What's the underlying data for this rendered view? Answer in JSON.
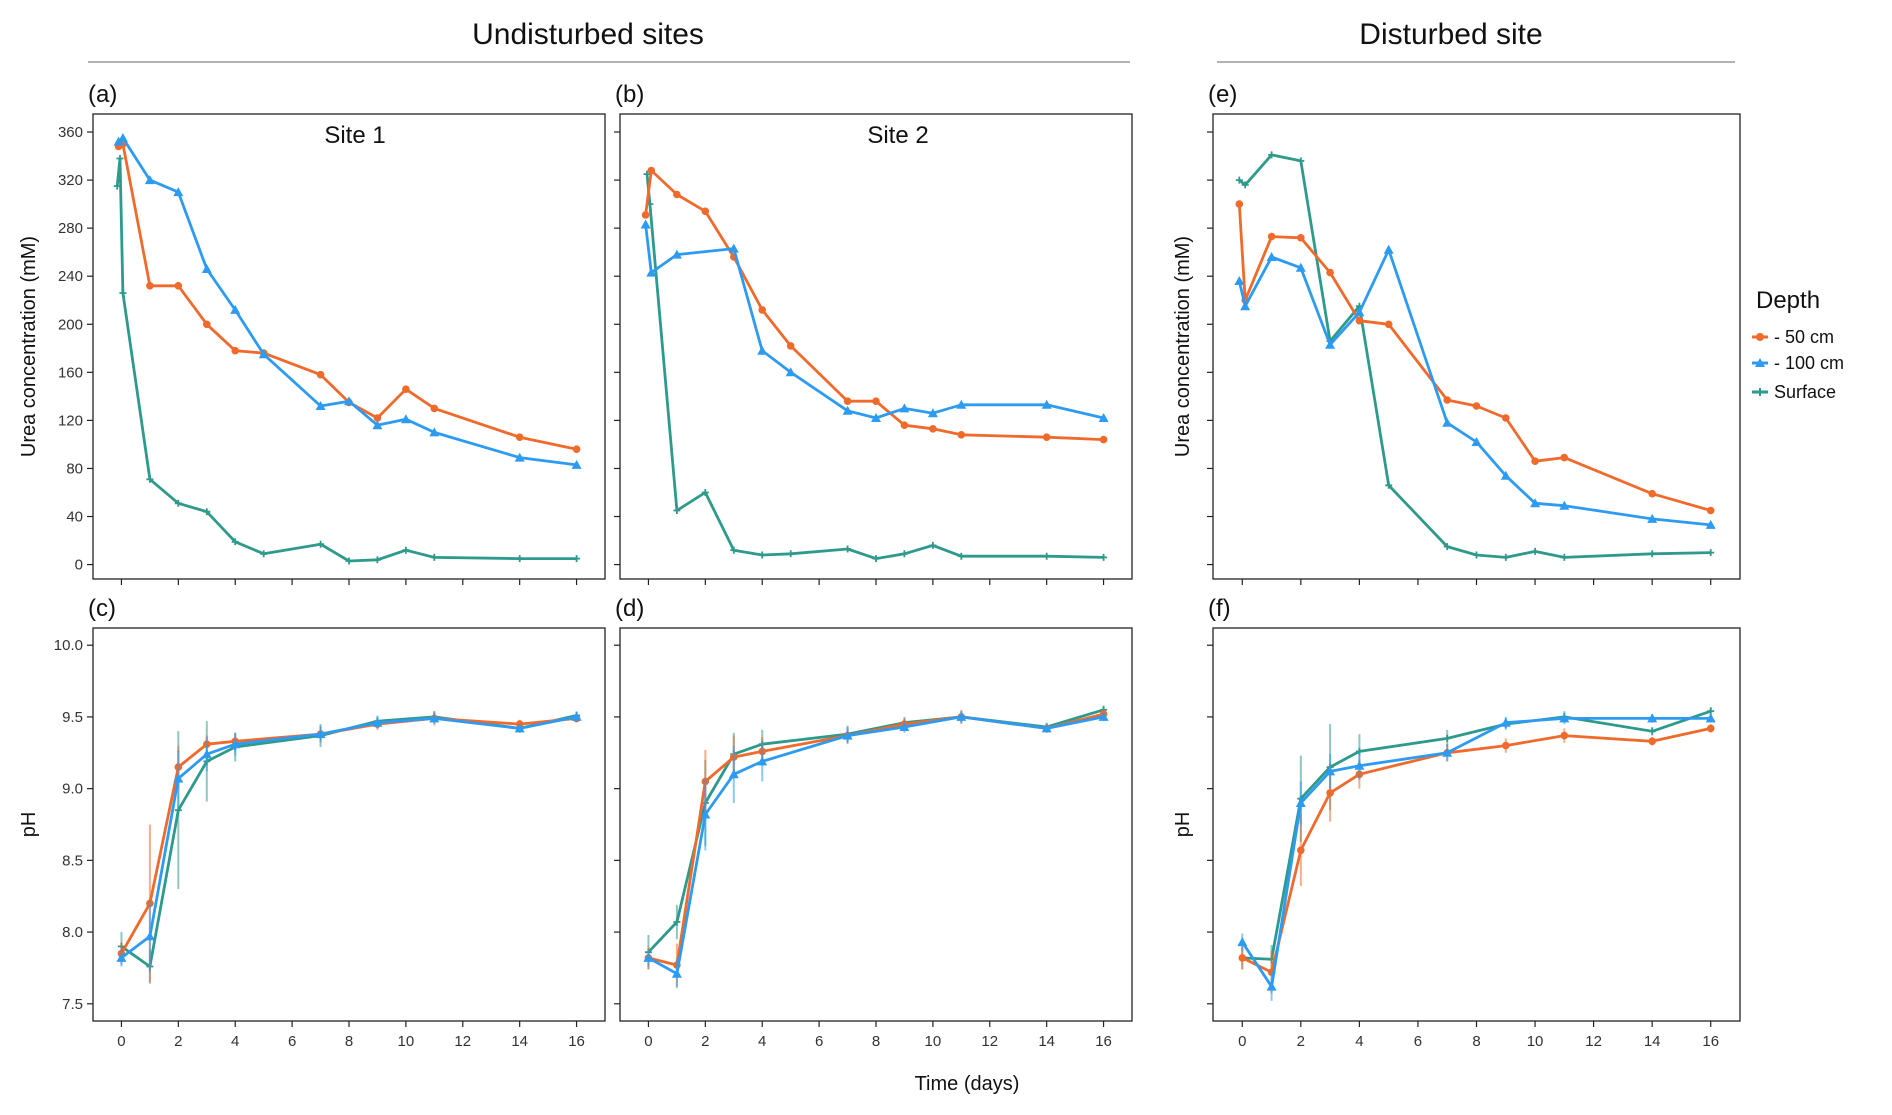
{
  "headers": {
    "undisturbed": "Undisturbed  sites",
    "disturbed": "Disturbed site"
  },
  "x_axis_label": "Time (days)",
  "colors": {
    "m50": "#F06A2C",
    "m100": "#2E9BF2",
    "surface": "#2E9A8C"
  },
  "legend": {
    "title": "Depth",
    "items": [
      {
        "key": "m50",
        "label": "- 50 cm",
        "marker": "circle"
      },
      {
        "key": "m100",
        "label": "- 100 cm",
        "marker": "triangle"
      },
      {
        "key": "surface",
        "label": "Surface",
        "marker": "cross"
      }
    ]
  },
  "chart_data": [
    {
      "id": "a",
      "panel_label": "(a)",
      "title": "Site 1",
      "type": "line",
      "ylabel": "Urea concentration (mM)",
      "xlim": [
        -1,
        17
      ],
      "ylim": [
        -12,
        375
      ],
      "yticks": [
        0,
        40,
        80,
        120,
        160,
        200,
        240,
        280,
        320,
        360
      ],
      "show_ytick_labels": true,
      "xticks": [
        0,
        2,
        4,
        6,
        8,
        10,
        12,
        14,
        16
      ],
      "show_xtick_labels": false,
      "series": [
        {
          "key": "m50",
          "name": "- 50 cm",
          "x": [
            -0.1,
            0.05,
            1,
            2,
            3,
            4,
            5,
            7,
            8,
            9,
            10,
            11,
            14,
            16
          ],
          "y": [
            348,
            350,
            232,
            232,
            200,
            178,
            176,
            158,
            135,
            122,
            146,
            130,
            106,
            96
          ]
        },
        {
          "key": "m100",
          "name": "- 100 cm",
          "x": [
            -0.1,
            0.05,
            1,
            2,
            3,
            4,
            5,
            7,
            8,
            9,
            10,
            11,
            14,
            16
          ],
          "y": [
            352,
            355,
            320,
            310,
            246,
            212,
            175,
            132,
            136,
            116,
            121,
            110,
            89,
            83
          ]
        },
        {
          "key": "surface",
          "name": "Surface",
          "x": [
            -0.15,
            -0.05,
            0.05,
            1,
            2,
            3,
            4,
            5,
            7,
            8,
            9,
            10,
            11,
            14,
            16
          ],
          "y": [
            315,
            338,
            226,
            71,
            51,
            44,
            19,
            9,
            17,
            3,
            4,
            12,
            6,
            5,
            5
          ]
        }
      ]
    },
    {
      "id": "b",
      "panel_label": "(b)",
      "title": "Site 2",
      "type": "line",
      "ylabel": "",
      "xlim": [
        -1,
        17
      ],
      "ylim": [
        -12,
        375
      ],
      "yticks": [
        0,
        40,
        80,
        120,
        160,
        200,
        240,
        280,
        320,
        360
      ],
      "show_ytick_labels": false,
      "xticks": [
        0,
        2,
        4,
        6,
        8,
        10,
        12,
        14,
        16
      ],
      "show_xtick_labels": false,
      "series": [
        {
          "key": "m50",
          "name": "- 50 cm",
          "x": [
            -0.1,
            0.1,
            1,
            2,
            3,
            4,
            5,
            7,
            8,
            9,
            10,
            11,
            14,
            16
          ],
          "y": [
            291,
            328,
            308,
            294,
            256,
            212,
            182,
            136,
            136,
            116,
            113,
            108,
            106,
            104
          ]
        },
        {
          "key": "m100",
          "name": "- 100 cm",
          "x": [
            -0.1,
            0.1,
            1,
            3,
            4,
            5,
            7,
            8,
            9,
            10,
            11,
            14,
            16
          ],
          "y": [
            283,
            243,
            258,
            263,
            178,
            160,
            128,
            122,
            130,
            126,
            133,
            133,
            122
          ]
        },
        {
          "key": "surface",
          "name": "Surface",
          "x": [
            -0.05,
            0.05,
            1,
            2,
            3,
            4,
            5,
            7,
            8,
            9,
            10,
            11,
            14,
            16
          ],
          "y": [
            325,
            300,
            45,
            60,
            12,
            8,
            9,
            13,
            5,
            9,
            16,
            7,
            7,
            6
          ]
        }
      ]
    },
    {
      "id": "e",
      "panel_label": "(e)",
      "title": "",
      "type": "line",
      "ylabel": "Urea concentration (mM)",
      "xlim": [
        -1,
        17
      ],
      "ylim": [
        -12,
        375
      ],
      "yticks": [
        0,
        40,
        80,
        120,
        160,
        200,
        240,
        280,
        320,
        360
      ],
      "show_ytick_labels": false,
      "xticks": [
        0,
        2,
        4,
        6,
        8,
        10,
        12,
        14,
        16
      ],
      "show_xtick_labels": false,
      "series": [
        {
          "key": "m50",
          "name": "- 50 cm",
          "x": [
            -0.1,
            0.1,
            1,
            2,
            3,
            4,
            5,
            7,
            8,
            9,
            10,
            11,
            14,
            16
          ],
          "y": [
            300,
            220,
            273,
            272,
            243,
            203,
            200,
            137,
            132,
            122,
            86,
            89,
            59,
            45
          ]
        },
        {
          "key": "m100",
          "name": "- 100 cm",
          "x": [
            -0.1,
            0.1,
            1,
            2,
            3,
            4,
            5,
            7,
            8,
            9,
            10,
            11,
            14,
            16
          ],
          "y": [
            236,
            215,
            256,
            247,
            183,
            210,
            262,
            118,
            102,
            74,
            51,
            49,
            38,
            33
          ]
        },
        {
          "key": "surface",
          "name": "Surface",
          "x": [
            -0.1,
            0.1,
            1,
            2,
            3,
            4,
            5,
            7,
            8,
            9,
            10,
            11,
            14,
            16
          ],
          "y": [
            320,
            316,
            341,
            336,
            186,
            215,
            66,
            15,
            8,
            6,
            11,
            6,
            9,
            10
          ]
        }
      ]
    },
    {
      "id": "c",
      "panel_label": "(c)",
      "title": "",
      "type": "line",
      "ylabel": "pH",
      "xlim": [
        -1,
        17
      ],
      "ylim": [
        7.38,
        10.12
      ],
      "yticks": [
        7.5,
        8.0,
        8.5,
        9.0,
        9.5,
        10.0
      ],
      "ytick_labels": [
        "7.5",
        "8.0",
        "8.5",
        "9.0",
        "9.5",
        "10.0"
      ],
      "show_ytick_labels": true,
      "xticks": [
        0,
        2,
        4,
        6,
        8,
        10,
        12,
        14,
        16
      ],
      "show_xtick_labels": true,
      "series": [
        {
          "key": "m50",
          "name": "- 50 cm",
          "x": [
            0,
            1,
            2,
            3,
            4,
            7,
            9,
            11,
            14,
            16
          ],
          "y": [
            7.85,
            8.2,
            9.15,
            9.31,
            9.33,
            9.38,
            9.45,
            9.49,
            9.45,
            9.49
          ],
          "err": [
            0.08,
            0.55,
            0.15,
            0.06,
            0.05,
            0.05,
            0.04,
            0.05,
            0.03,
            0.03
          ]
        },
        {
          "key": "m100",
          "name": "- 100 cm",
          "x": [
            0,
            1,
            2,
            3,
            4,
            7,
            9,
            11,
            14,
            16
          ],
          "y": [
            7.82,
            7.97,
            9.07,
            9.24,
            9.31,
            9.38,
            9.46,
            9.49,
            9.42,
            9.5
          ],
          "err": [
            0.06,
            0.25,
            0.2,
            0.12,
            0.08,
            0.06,
            0.04,
            0.04,
            0.03,
            0.03
          ]
        },
        {
          "key": "surface",
          "name": "Surface",
          "x": [
            0,
            1,
            2,
            3,
            4,
            7,
            9,
            11,
            14,
            16
          ],
          "y": [
            7.9,
            7.76,
            8.85,
            9.19,
            9.29,
            9.37,
            9.47,
            9.5,
            9.42,
            9.51
          ],
          "err": [
            0.1,
            0.12,
            0.55,
            0.28,
            0.1,
            0.08,
            0.04,
            0.04,
            0.03,
            0.03
          ]
        }
      ]
    },
    {
      "id": "d",
      "panel_label": "(d)",
      "title": "",
      "type": "line",
      "ylabel": "",
      "xlim": [
        -1,
        17
      ],
      "ylim": [
        7.38,
        10.12
      ],
      "yticks": [
        7.5,
        8.0,
        8.5,
        9.0,
        9.5,
        10.0
      ],
      "show_ytick_labels": false,
      "xticks": [
        0,
        2,
        4,
        6,
        8,
        10,
        12,
        14,
        16
      ],
      "show_xtick_labels": true,
      "series": [
        {
          "key": "m50",
          "name": "- 50 cm",
          "x": [
            0,
            1,
            2,
            3,
            4,
            7,
            9,
            11,
            14,
            16
          ],
          "y": [
            7.82,
            7.77,
            9.05,
            9.22,
            9.26,
            9.37,
            9.45,
            9.5,
            9.42,
            9.52
          ],
          "err": [
            0.08,
            0.15,
            0.22,
            0.15,
            0.1,
            0.05,
            0.04,
            0.05,
            0.03,
            0.03
          ]
        },
        {
          "key": "m100",
          "name": "- 100 cm",
          "x": [
            0,
            1,
            2,
            3,
            4,
            7,
            9,
            11,
            14,
            16
          ],
          "y": [
            7.82,
            7.71,
            8.82,
            9.1,
            9.19,
            9.37,
            9.43,
            9.5,
            9.42,
            9.5
          ],
          "err": [
            0.06,
            0.1,
            0.25,
            0.2,
            0.14,
            0.06,
            0.04,
            0.04,
            0.03,
            0.03
          ]
        },
        {
          "key": "surface",
          "name": "Surface",
          "x": [
            0,
            1,
            2,
            3,
            4,
            7,
            9,
            11,
            14,
            16
          ],
          "y": [
            7.86,
            8.07,
            8.9,
            9.24,
            9.31,
            9.38,
            9.46,
            9.5,
            9.43,
            9.55
          ],
          "err": [
            0.12,
            0.12,
            0.3,
            0.15,
            0.1,
            0.06,
            0.04,
            0.04,
            0.03,
            0.03
          ]
        }
      ]
    },
    {
      "id": "f",
      "panel_label": "(f)",
      "title": "",
      "type": "line",
      "ylabel": "pH",
      "xlim": [
        -1,
        17
      ],
      "ylim": [
        7.38,
        10.12
      ],
      "yticks": [
        7.5,
        8.0,
        8.5,
        9.0,
        9.5,
        10.0
      ],
      "show_ytick_labels": false,
      "xticks": [
        0,
        2,
        4,
        6,
        8,
        10,
        12,
        14,
        16
      ],
      "show_xtick_labels": true,
      "series": [
        {
          "key": "m50",
          "name": "- 50 cm",
          "x": [
            0,
            1,
            2,
            3,
            4,
            7,
            9,
            11,
            14,
            16
          ],
          "y": [
            7.82,
            7.72,
            8.57,
            8.97,
            9.1,
            9.25,
            9.3,
            9.37,
            9.33,
            9.42
          ],
          "err": [
            0.08,
            0.15,
            0.25,
            0.2,
            0.1,
            0.06,
            0.05,
            0.05,
            0.03,
            0.03
          ]
        },
        {
          "key": "m100",
          "name": "- 100 cm",
          "x": [
            0,
            1,
            2,
            3,
            4,
            7,
            9,
            11,
            14,
            16
          ],
          "y": [
            7.93,
            7.62,
            8.9,
            9.12,
            9.16,
            9.25,
            9.46,
            9.49,
            9.49,
            9.49
          ],
          "err": [
            0.06,
            0.1,
            0.15,
            0.12,
            0.1,
            0.06,
            0.04,
            0.04,
            0.03,
            0.03
          ]
        },
        {
          "key": "surface",
          "name": "Surface",
          "x": [
            0,
            1,
            2,
            3,
            4,
            7,
            9,
            11,
            14,
            16
          ],
          "y": [
            7.82,
            7.81,
            8.93,
            9.15,
            9.26,
            9.35,
            9.45,
            9.5,
            9.4,
            9.54
          ],
          "err": [
            0.08,
            0.1,
            0.3,
            0.3,
            0.12,
            0.06,
            0.04,
            0.04,
            0.03,
            0.03
          ]
        }
      ]
    }
  ]
}
